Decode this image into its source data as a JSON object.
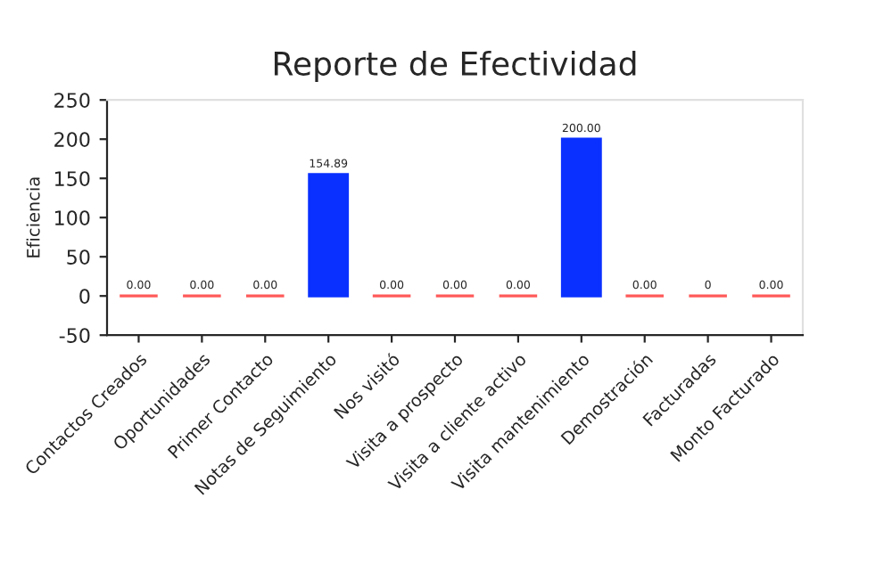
{
  "chart_data": {
    "type": "bar",
    "title": "Reporte de Efectividad",
    "ylabel": "Eficiencia",
    "categories": [
      "Contactos Creados",
      "Oportunidades",
      "Primer Contacto",
      "Notas de Seguimiento",
      "Nos visitó",
      "Visita a prospecto",
      "Visita a cliente activo",
      "Visita mantenimiento",
      "Demostración",
      "Facturadas",
      "Monto Facturado"
    ],
    "values": [
      0,
      0,
      0,
      154.89,
      0,
      0,
      0,
      200,
      0,
      0,
      0
    ],
    "value_labels": [
      "0.00",
      "0.00",
      "0.00",
      "154.89",
      "0.00",
      "0.00",
      "0.00",
      "200.00",
      "0.00",
      "0",
      "0.00"
    ],
    "colors": [
      "#ff5a5a",
      "#ff5a5a",
      "#ff5a5a",
      "#0a30ff",
      "#ff5a5a",
      "#ff5a5a",
      "#ff5a5a",
      "#0a30ff",
      "#ff5a5a",
      "#ff5a5a",
      "#ff5a5a"
    ],
    "ylim": [
      -50,
      250
    ],
    "yticks": [
      -50,
      0,
      50,
      100,
      150,
      200,
      250
    ],
    "grid": false,
    "legend": false
  }
}
